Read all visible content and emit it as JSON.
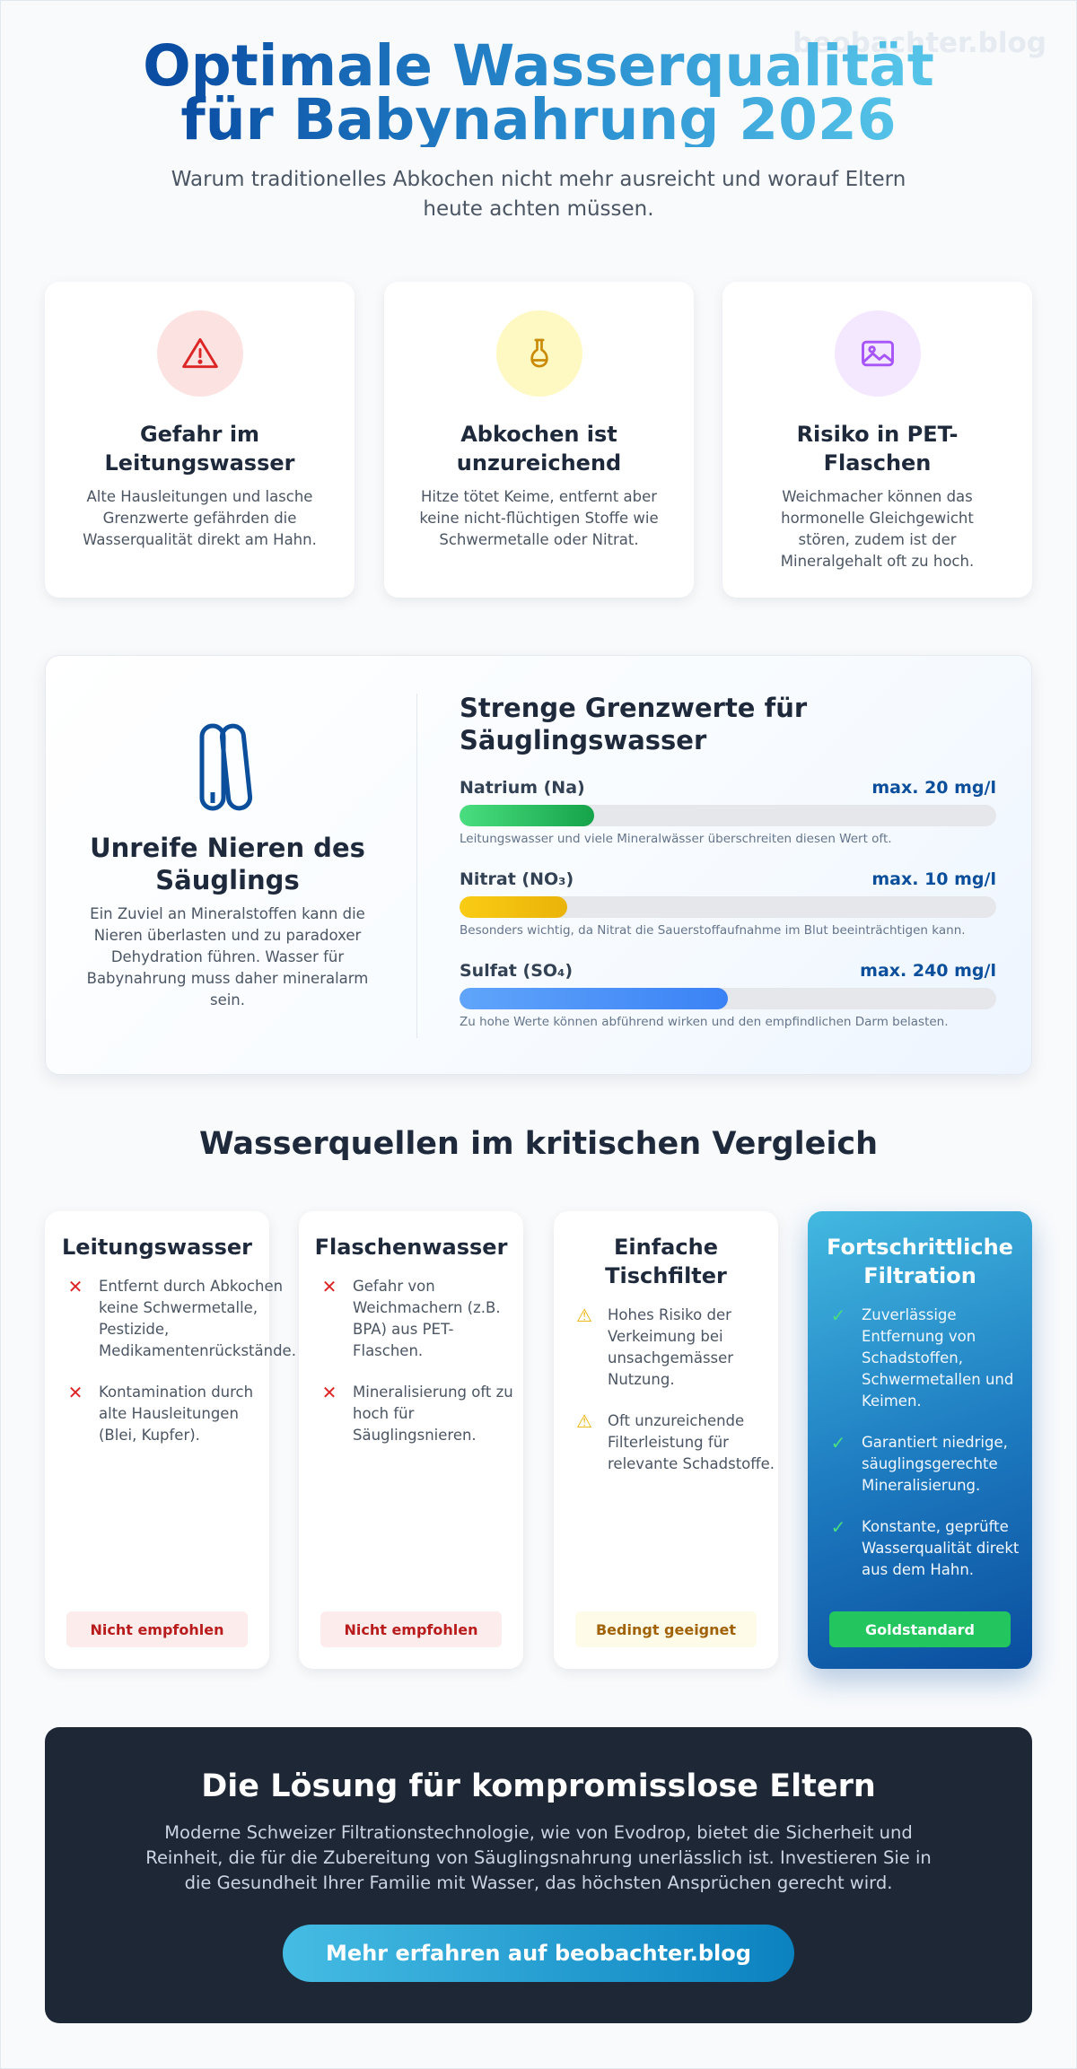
{
  "watermark": "beobachter.blog",
  "hero": {
    "title": "Optimale Wasserqualität für Babynahrung 2026",
    "subtitle": "Warum traditionelles Abkochen nicht mehr ausreicht und worauf Eltern heute achten müssen."
  },
  "risks": [
    {
      "icon": "warning-icon",
      "color": "#dc2626",
      "bg": "#fde2e2",
      "title": "Gefahr im Leitungswasser",
      "text": "Alte Hausleitungen und lasche Grenzwerte gefährden die Wasserqualität direkt am Hahn."
    },
    {
      "icon": "flask-icon",
      "color": "#ca8a04",
      "bg": "#fef9c3",
      "title": "Abkochen ist unzureichend",
      "text": "Hitze tötet Keime, entfernt aber keine nicht-flüchtigen Stoffe wie Schwermetalle oder Nitrat."
    },
    {
      "icon": "image-icon",
      "color": "#a855f7",
      "bg": "#f3e8ff",
      "title": "Risiko in PET-Flaschen",
      "text": "Weichmacher können das hormonelle Gleichgewicht stören, zudem ist der Mineralgehalt oft zu hoch."
    }
  ],
  "kidney": {
    "icon": "kidney-icon",
    "title": "Unreife Nieren des Säuglings",
    "text": "Ein Zuviel an Mineralstoffen kann die Nieren überlasten und zu paradoxer Dehydration führen. Wasser für Babynahrung muss daher mineralarm sein."
  },
  "limits": {
    "title": "Strenge Grenzwerte für Säuglingswasser",
    "items": [
      {
        "name": "Natrium (Na)",
        "max": "max. 20 mg/l",
        "level": 0.25,
        "color_from": "#4ade80",
        "color_to": "#16a34a",
        "note": "Leitungswasser und viele Mineralwässer überschreiten diesen Wert oft."
      },
      {
        "name": "Nitrat (NO₃)",
        "max": "max. 10 mg/l",
        "level": 0.2,
        "color_from": "#facc15",
        "color_to": "#eab308",
        "note": "Besonders wichtig, da Nitrat die Sauerstoffaufnahme im Blut beeinträchtigen kann."
      },
      {
        "name": "Sulfat (SO₄)",
        "max": "max. 240 mg/l",
        "level": 0.5,
        "color_from": "#60a5fa",
        "color_to": "#3b82f6",
        "note": "Zu hohe Werte können abführend wirken und den empfindlichen Darm belasten."
      }
    ]
  },
  "comparison": {
    "title": "Wasserquellen im kritischen Vergleich",
    "columns": [
      {
        "title": "Leitungswasser",
        "points": [
          "Entfernt durch Abkochen keine Schwermetalle, Pestizide, Medikamentenrückstände.",
          "Kontamination durch alte Hausleitungen (Blei, Kupfer)."
        ],
        "mark": "✕",
        "mark_color": "#dc2626",
        "badge": "Nicht empfohlen",
        "badge_bg": "#fdecec",
        "badge_color": "#b91c1c"
      },
      {
        "title": "Flaschenwasser",
        "points": [
          "Gefahr von Weichmachern (z.B. BPA) aus PET-Flaschen.",
          "Mineralisierung oft zu hoch für Säuglingsnieren."
        ],
        "mark": "✕",
        "mark_color": "#dc2626",
        "badge": "Nicht empfohlen",
        "badge_bg": "#fdecec",
        "badge_color": "#b91c1c"
      },
      {
        "title": "Einfache Tischfilter",
        "points": [
          "Hohes Risiko der Verkeimung bei unsachgemässer Nutzung.",
          "Oft unzureichende Filterleistung für relevante Schadstoffe."
        ],
        "mark": "⚠",
        "mark_color": "#eab308",
        "badge": "Bedingt geeignet",
        "badge_bg": "#fefce8",
        "badge_color": "#a16207"
      },
      {
        "title": "Fortschrittliche Filtration",
        "points": [
          "Zuverlässige Entfernung von Schadstoffen, Schwermetallen und Keimen.",
          "Garantiert niedrige, säuglingsgerechte Mineralisierung.",
          "Konstante, geprüfte Wasserqualität direkt aus dem Hahn."
        ],
        "mark": "✓",
        "mark_color": "#4ade80",
        "badge": "Goldstandard",
        "badge_bg": "#22c55e",
        "badge_color": "#ffffff"
      }
    ]
  },
  "cta": {
    "title": "Die Lösung für kompromisslose Eltern",
    "text": "Moderne Schweizer Filtrationstechnologie, wie von Evodrop, bietet die Sicherheit und Reinheit, die für die Zubereitung von Säuglingsnahrung unerlässlich ist. Investieren Sie in die Gesundheit Ihrer Familie mit Wasser, das höchsten Ansprüchen gerecht wird.",
    "button": "Mehr erfahren auf beobachter.blog"
  }
}
